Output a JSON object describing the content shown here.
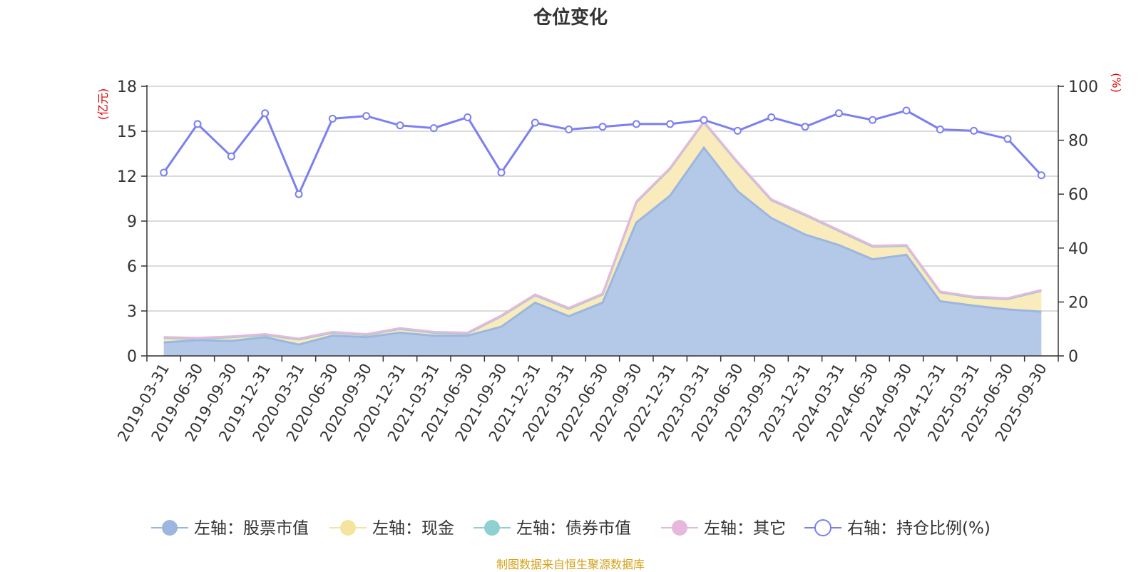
{
  "chart_data": {
    "type": "area",
    "title": "仓位变化",
    "y_left_unit": "(亿元)",
    "y_right_unit": "(%)",
    "y_left_range": [
      0,
      18
    ],
    "y_left_ticks": [
      0,
      3,
      6,
      9,
      12,
      15,
      18
    ],
    "y_right_range": [
      0,
      100
    ],
    "y_right_ticks": [
      0,
      20,
      40,
      60,
      80,
      100
    ],
    "grid": true,
    "legend_position": "bottom",
    "categories": [
      "2019-03-31",
      "2019-06-30",
      "2019-09-30",
      "2019-12-31",
      "2020-03-31",
      "2020-06-30",
      "2020-09-30",
      "2020-12-31",
      "2021-03-31",
      "2021-06-30",
      "2021-09-30",
      "2021-12-31",
      "2022-03-31",
      "2022-06-30",
      "2022-09-30",
      "2022-12-31",
      "2023-03-31",
      "2023-06-30",
      "2023-09-30",
      "2023-12-31",
      "2024-03-31",
      "2024-06-30",
      "2024-09-30",
      "2024-12-31",
      "2025-03-31",
      "2025-06-30",
      "2025-09-30"
    ],
    "series": [
      {
        "name": "左轴：股票市值",
        "axis": "left",
        "color": "#9cb6e0",
        "fill": "#b4c9e8",
        "values": [
          0.9,
          1.05,
          1.0,
          1.25,
          0.75,
          1.35,
          1.25,
          1.55,
          1.35,
          1.35,
          1.95,
          3.55,
          2.65,
          3.55,
          8.9,
          10.7,
          13.9,
          11.0,
          9.2,
          8.1,
          7.4,
          6.45,
          6.75,
          3.65,
          3.35,
          3.1,
          2.95
        ]
      },
      {
        "name": "左轴：现金",
        "axis": "left",
        "color": "#f5e4a0",
        "fill": "#f9ebbb",
        "values": [
          0.3,
          0.1,
          0.25,
          0.15,
          0.35,
          0.2,
          0.15,
          0.25,
          0.2,
          0.15,
          0.7,
          0.5,
          0.5,
          0.55,
          1.35,
          1.8,
          1.7,
          1.9,
          1.2,
          1.3,
          0.95,
          0.85,
          0.6,
          0.6,
          0.55,
          0.7,
          1.4
        ]
      },
      {
        "name": "左轴：债券市值",
        "axis": "left",
        "color": "#8fd1d0",
        "fill": "#a8dcdb",
        "values": [
          0,
          0,
          0,
          0,
          0,
          0,
          0,
          0,
          0,
          0,
          0,
          0,
          0,
          0,
          0,
          0,
          0,
          0,
          0,
          0,
          0,
          0,
          0,
          0,
          0,
          0,
          0
        ]
      },
      {
        "name": "左轴：其它",
        "axis": "left",
        "color": "#e6b8dc",
        "fill": "#efcce6",
        "values": [
          0.05,
          0.05,
          0.05,
          0.05,
          0.05,
          0.05,
          0.05,
          0.05,
          0.05,
          0.05,
          0.05,
          0.05,
          0.05,
          0.05,
          0.05,
          0.05,
          0.05,
          0.05,
          0.05,
          0.05,
          0.05,
          0.05,
          0.05,
          0.05,
          0.05,
          0.05,
          0.05
        ]
      },
      {
        "name": "右轴：持仓比例(%)",
        "axis": "right",
        "color": "#7b7ff0",
        "values": [
          68,
          86,
          74,
          90,
          60,
          88,
          89,
          85.5,
          84.5,
          88.5,
          68,
          86.5,
          84,
          85,
          86,
          86,
          87.5,
          83.5,
          88.5,
          85,
          90,
          87.5,
          91,
          84,
          83.5,
          80.5,
          67
        ]
      }
    ]
  },
  "source_note": "制图数据来自恒生聚源数据库"
}
